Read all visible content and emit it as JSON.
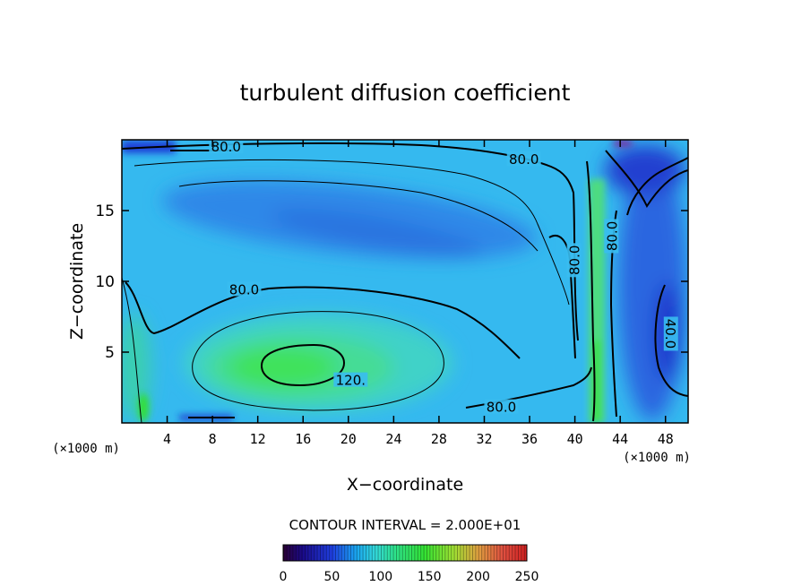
{
  "chart_data": {
    "type": "heatmap",
    "title": "turbulent diffusion coefficient",
    "xlabel": "X−coordinate",
    "ylabel": "Z−coordinate",
    "x_unit_left": "(×1000 m)",
    "x_unit_right": "(×1000 m)",
    "xlim": [
      0,
      50
    ],
    "ylim": [
      0,
      20
    ],
    "xticks": [
      4,
      8,
      12,
      16,
      20,
      24,
      28,
      32,
      36,
      40,
      44,
      48
    ],
    "yticks": [
      5,
      10,
      15
    ],
    "contour_interval_label": "CONTOUR INTERVAL = 2.000E+01",
    "contour_interval": 20,
    "colorbar": {
      "range": [
        0,
        250
      ],
      "tick_labels": [
        "0",
        "50",
        "100",
        "150",
        "200",
        "250"
      ],
      "ticks": [
        0,
        50,
        100,
        150,
        200,
        250
      ]
    },
    "contour_labels": [
      {
        "text": "80.0",
        "x": 9.2,
        "y": 19.5
      },
      {
        "text": "80.0",
        "x": 35.5,
        "y": 18.6
      },
      {
        "text": "80.0",
        "x": 10.8,
        "y": 9.4
      },
      {
        "text": "120.",
        "x": 20.2,
        "y": 3.0
      },
      {
        "text": "80.0",
        "x": 33.5,
        "y": 1.1
      },
      {
        "text": "80.0",
        "x": 40.0,
        "y": 11.5
      },
      {
        "text": "80.0",
        "x": 43.3,
        "y": 13.2
      },
      {
        "text": "40.0",
        "x": 48.4,
        "y": 6.3
      }
    ],
    "colors": {
      "field_background": "#33b8f0",
      "low": "#1f2fd0",
      "mid": "#3dd0b0",
      "high": "#2ee22a",
      "contour": "#000000"
    }
  }
}
